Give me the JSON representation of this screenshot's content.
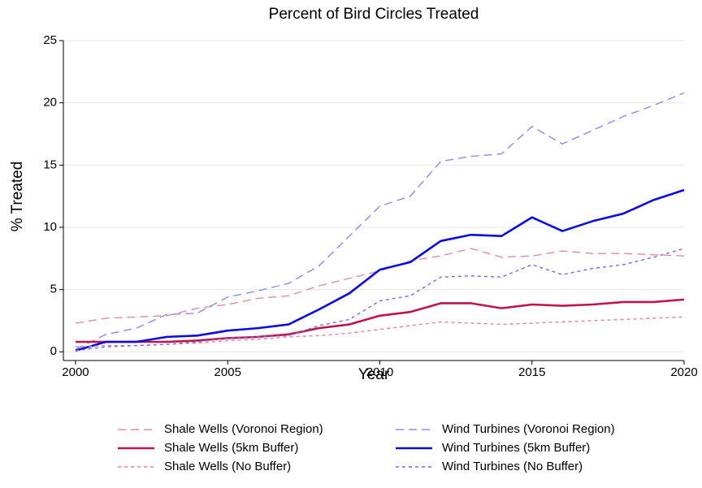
{
  "chart_data": {
    "type": "line",
    "title": "Percent of Bird Circles Treated",
    "x_label": "Year",
    "y_label": "% Treated",
    "x": [
      2000,
      2001,
      2002,
      2003,
      2004,
      2005,
      2006,
      2007,
      2008,
      2009,
      2010,
      2011,
      2012,
      2013,
      2014,
      2015,
      2016,
      2017,
      2018,
      2019,
      2020
    ],
    "xlim": [
      1999.6,
      2020
    ],
    "xticks": [
      2000,
      2005,
      2010,
      2015,
      2020
    ],
    "ylim": [
      -0.7,
      25
    ],
    "yticks": [
      0,
      5,
      10,
      15,
      20,
      25
    ],
    "grid": true,
    "series": [
      {
        "name": "Shale Wells (Voronoi Region)",
        "color": "#e08aa6",
        "style": "dashed",
        "values": [
          2.3,
          2.7,
          2.8,
          2.9,
          3.5,
          3.8,
          4.3,
          4.5,
          5.3,
          5.9,
          6.5,
          7.3,
          7.7,
          8.3,
          7.6,
          7.7,
          8.1,
          7.9,
          7.9,
          7.8,
          7.7
        ]
      },
      {
        "name": "Wind Turbines (Voronoi Region)",
        "color": "#8a8af2",
        "style": "dashed",
        "values": [
          0.2,
          1.4,
          1.9,
          3.0,
          3.1,
          4.4,
          4.9,
          5.5,
          6.9,
          9.3,
          11.7,
          12.5,
          15.3,
          15.7,
          15.9,
          18.1,
          16.7,
          17.8,
          18.9,
          19.8,
          20.8
        ]
      },
      {
        "name": "Shale Wells (5km Buffer)",
        "color": "#c0134a",
        "style": "solid",
        "values": [
          0.8,
          0.8,
          0.8,
          0.8,
          0.9,
          1.1,
          1.2,
          1.4,
          1.9,
          2.2,
          2.9,
          3.2,
          3.9,
          3.9,
          3.5,
          3.8,
          3.7,
          3.8,
          4.0,
          4.0,
          4.2
        ]
      },
      {
        "name": "Wind Turbines (5km Buffer)",
        "color": "#0a0ae0",
        "style": "solid",
        "values": [
          0.1,
          0.8,
          0.8,
          1.2,
          1.3,
          1.7,
          1.9,
          2.2,
          3.4,
          4.7,
          6.6,
          7.2,
          8.9,
          9.4,
          9.3,
          10.8,
          9.7,
          10.5,
          11.1,
          12.2,
          13.0
        ]
      },
      {
        "name": "Shale Wells (No Buffer)",
        "color": "#e67ca4",
        "style": "dotted",
        "values": [
          0.4,
          0.5,
          0.5,
          0.6,
          0.7,
          0.9,
          1.0,
          1.2,
          1.3,
          1.5,
          1.8,
          2.1,
          2.4,
          2.3,
          2.2,
          2.3,
          2.4,
          2.5,
          2.6,
          2.7,
          2.8
        ]
      },
      {
        "name": "Wind Turbines (No Buffer)",
        "color": "#6e6ee6",
        "style": "dotted",
        "values": [
          0.1,
          0.4,
          0.5,
          0.6,
          0.8,
          1.1,
          1.2,
          1.3,
          2.1,
          2.6,
          4.1,
          4.5,
          6.0,
          6.1,
          6.0,
          7.0,
          6.2,
          6.7,
          7.0,
          7.6,
          8.3
        ]
      }
    ]
  }
}
